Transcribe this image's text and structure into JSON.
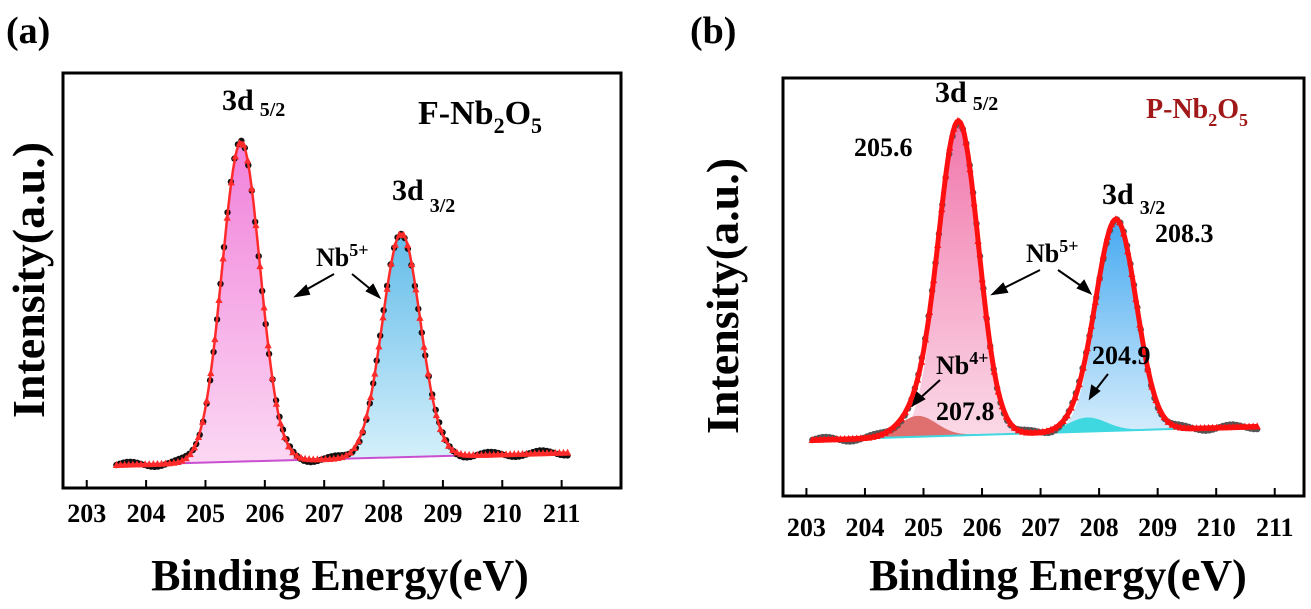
{
  "figure": {
    "panel_a_label": "(a)",
    "panel_b_label": "(b)"
  },
  "chart_data": [
    {
      "type": "area",
      "panel": "(a)",
      "sample_label": {
        "prefix": "F-Nb",
        "sub1": "2",
        "mid": "O",
        "sub2": "5"
      },
      "xlabel": "Binding Energy(eV)",
      "ylabel": "Intensity(a.u.)",
      "xlim": [
        202.6,
        212.0
      ],
      "ylim": [
        0,
        1.0
      ],
      "x_ticks": [
        "203",
        "204",
        "205",
        "206",
        "207",
        "208",
        "209",
        "210",
        "211"
      ],
      "y_ticks_shown": false,
      "peaks": [
        {
          "name": "3d 5/2",
          "state": "Nb5+",
          "center": 205.6,
          "height": 0.9,
          "sigma": 0.32,
          "color": "#f6a6e6"
        },
        {
          "name": "3d 3/2",
          "state": "Nb5+",
          "center": 208.3,
          "height": 0.63,
          "sigma": 0.32,
          "color": "#a8d8f0"
        }
      ],
      "x_range": [
        203.5,
        211.1
      ],
      "baseline": [
        0.0,
        0.035
      ],
      "annotations": [
        {
          "text": "3d",
          "sub": "5/2"
        },
        {
          "text": "3d",
          "sub": "3/2"
        },
        {
          "text": "Nb",
          "sup": "5+"
        }
      ],
      "raw_color": "#111111",
      "fit_color": "#ff2a2a"
    },
    {
      "type": "area",
      "panel": "(b)",
      "sample_label": {
        "prefix": "P-Nb",
        "sub1": "2",
        "mid": "O",
        "sub2": "5",
        "color": "#a01818"
      },
      "xlabel": "Binding Energy(eV)",
      "ylabel": "Intensity(a.u.)",
      "xlim": [
        202.6,
        211.5
      ],
      "ylim": [
        0,
        1.0
      ],
      "x_ticks": [
        "203",
        "204",
        "205",
        "206",
        "207",
        "208",
        "209",
        "210",
        "211"
      ],
      "y_ticks_shown": false,
      "peaks": [
        {
          "name": "3d 5/2",
          "state": "Nb5+",
          "center": 205.6,
          "height": 0.92,
          "sigma": 0.34,
          "color": "#f4a6c8"
        },
        {
          "name": "3d 3/2",
          "state": "Nb5+",
          "center": 208.3,
          "height": 0.61,
          "sigma": 0.34,
          "color": "#8ec8f2"
        },
        {
          "name": "Nb4+",
          "state": "Nb4+",
          "center": 204.9,
          "height": 0.06,
          "sigma": 0.32,
          "color": "#e07070"
        },
        {
          "name": "Nb4+",
          "state": "Nb4+",
          "center": 207.8,
          "height": 0.04,
          "sigma": 0.32,
          "color": "#40d8e0"
        }
      ],
      "x_range": [
        203.1,
        210.7
      ],
      "baseline": [
        0.0,
        0.04
      ],
      "annotations": [
        {
          "text": "3d",
          "sub": "5/2"
        },
        {
          "text": "3d",
          "sub": "3/2"
        },
        {
          "text": "205.6"
        },
        {
          "text": "208.3"
        },
        {
          "text": "Nb",
          "sup": "5+"
        },
        {
          "text": "Nb",
          "sup": "4+"
        },
        {
          "text": "204.9"
        },
        {
          "text": "207.8"
        }
      ],
      "raw_color": "#555555",
      "fit_color": "#ff1010"
    }
  ]
}
